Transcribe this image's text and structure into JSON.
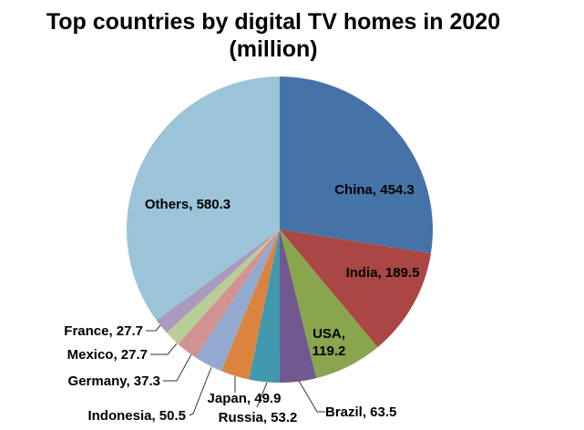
{
  "chart_data": {
    "type": "pie",
    "title_lines": [
      "Top countries by digital TV homes in 2020",
      "(million)"
    ],
    "start": "top, clockwise",
    "slices": [
      {
        "name": "China",
        "value": 454.3,
        "color": "#4673a7",
        "label": "China, 454.3"
      },
      {
        "name": "India",
        "value": 189.5,
        "color": "#aa4643",
        "label": "India, 189.5"
      },
      {
        "name": "USA",
        "value": 119.2,
        "color": "#89a54e",
        "label_lines": [
          "USA,",
          "119.2"
        ]
      },
      {
        "name": "Brazil",
        "value": 63.5,
        "color": "#71588f",
        "label": "Brazil, 63.5"
      },
      {
        "name": "Russia",
        "value": 53.2,
        "color": "#4198af",
        "label": "Russia, 53.2"
      },
      {
        "name": "Japan",
        "value": 49.9,
        "color": "#db843d",
        "label": "Japan, 49.9"
      },
      {
        "name": "Indonesia",
        "value": 50.5,
        "color": "#93a9cf",
        "label": "Indonesia, 50.5"
      },
      {
        "name": "Germany",
        "value": 37.3,
        "color": "#d19392",
        "label": "Germany, 37.3"
      },
      {
        "name": "Mexico",
        "value": 27.7,
        "color": "#b9cd96",
        "label": "Mexico, 27.7"
      },
      {
        "name": "France",
        "value": 27.7,
        "color": "#a99bbd",
        "label": "France, 27.7"
      },
      {
        "name": "Others",
        "value": 580.3,
        "color": "#9bc4d8",
        "label": "Others, 580.3"
      }
    ]
  }
}
